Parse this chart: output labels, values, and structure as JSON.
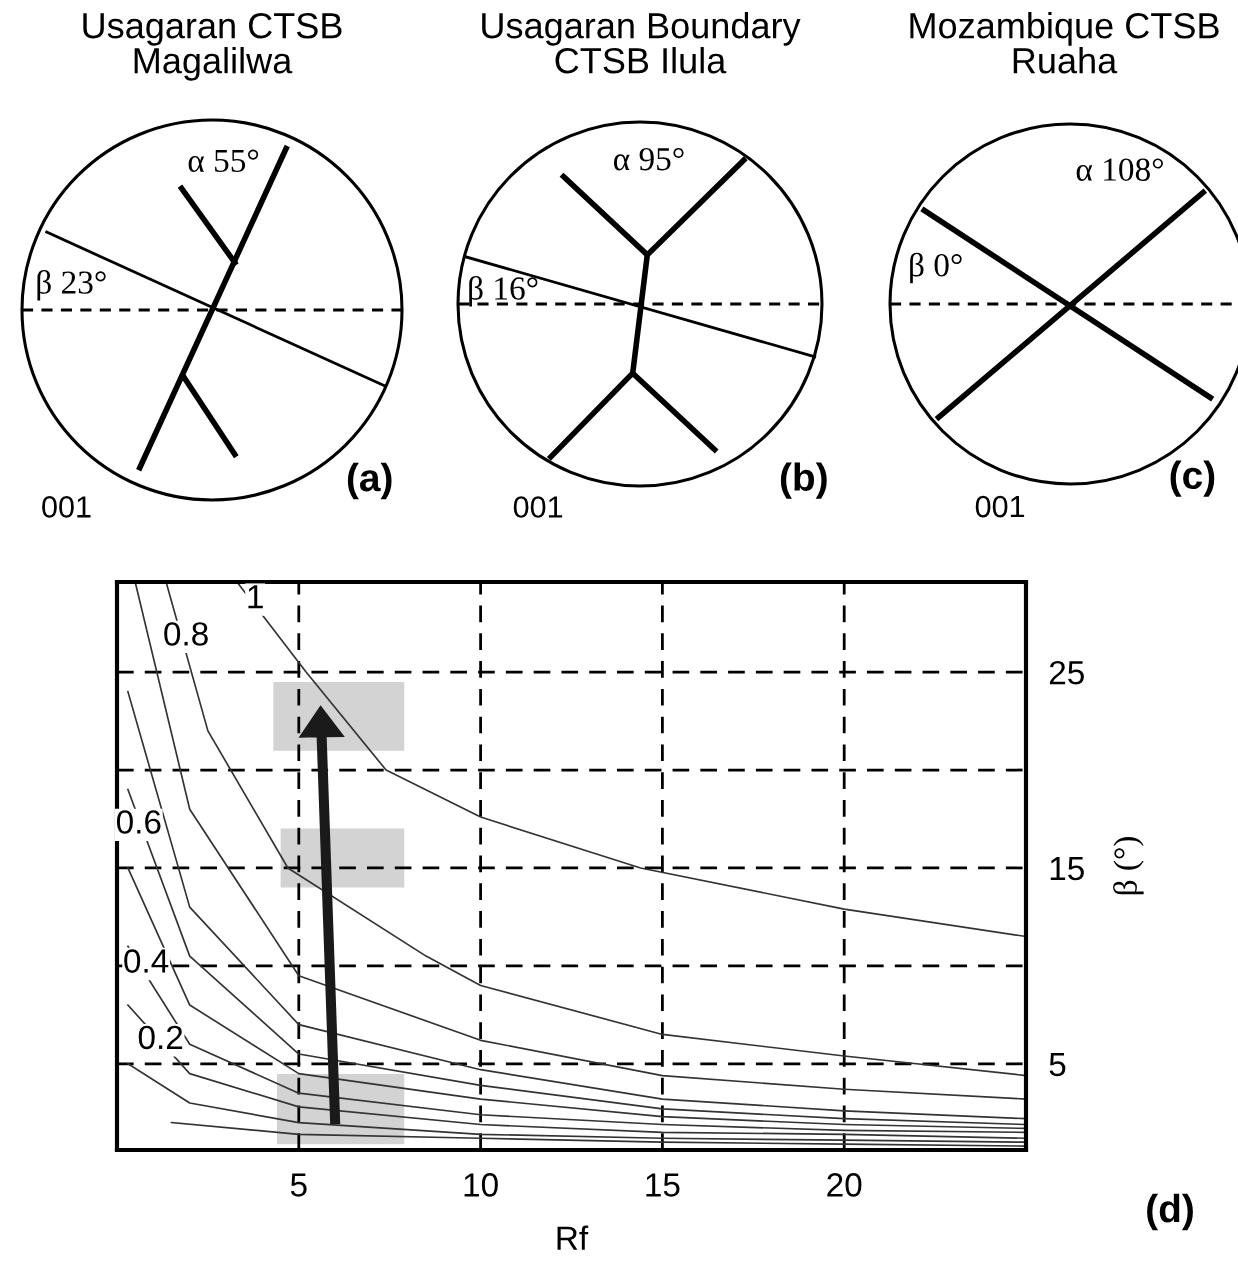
{
  "chart_data": [
    {
      "type": "other",
      "title": "Usagaran CTSB\nMagalilwa",
      "annotations": [
        "α 55°",
        "β 23°",
        "001",
        "(a)"
      ]
    },
    {
      "type": "other",
      "title": "Usagaran Boundary\nCTSB Ilula",
      "annotations": [
        "α 95°",
        "β 16°",
        "001",
        "(b)"
      ]
    },
    {
      "type": "other",
      "title": "Mozambique CTSB\nRuaha",
      "annotations": [
        "α 108°",
        "β 0°",
        "001",
        "(c)"
      ]
    },
    {
      "type": "line",
      "xlabel": "Rf",
      "ylabel": "β (°)",
      "xlim": [
        0,
        25
      ],
      "ylim": [
        0.6,
        29.6
      ],
      "xticks": [
        5,
        10,
        15,
        20
      ],
      "yticks": [
        5,
        {
          "value": 10,
          "label": null
        },
        15,
        {
          "value": 20,
          "label": null
        },
        25
      ],
      "grid": true,
      "legend": false,
      "marker": "none",
      "line_style": "solid",
      "series": [
        {
          "color": "#333333",
          "x": [
            3.3,
            5.2,
            7.4,
            10,
            14.4,
            20,
            25
          ],
          "values": [
            29.6,
            25,
            20,
            17.6,
            15,
            12.9,
            11.5
          ]
        },
        {
          "color": "#333333",
          "x": [
            1.35,
            2.5,
            4.7,
            8.5,
            10,
            15,
            20,
            25
          ],
          "values": [
            29.6,
            22,
            15,
            10.5,
            9,
            6.5,
            5.4,
            4.4
          ]
        },
        {
          "color": "#333333",
          "x": [
            0.5,
            2,
            5,
            10,
            15,
            20,
            25
          ],
          "values": [
            29.6,
            18,
            9.5,
            6.2,
            4.4,
            3.7,
            3.2
          ]
        },
        {
          "color": "#333333",
          "x": [
            0.3,
            2,
            5,
            10,
            15,
            20,
            25
          ],
          "values": [
            24,
            13,
            7,
            4.7,
            3.2,
            2.6,
            2.2
          ]
        },
        {
          "color": "#333333",
          "x": [
            0.3,
            2,
            5,
            10,
            15,
            20,
            25
          ],
          "values": [
            19,
            10.5,
            5.5,
            3.9,
            2.7,
            2.2,
            1.9
          ]
        },
        {
          "color": "#333333",
          "x": [
            0.3,
            2,
            5,
            10,
            15,
            20,
            25
          ],
          "values": [
            15,
            8,
            4.5,
            3.2,
            2.3,
            1.9,
            1.7
          ]
        },
        {
          "color": "#333333",
          "x": [
            0.3,
            2,
            5,
            10,
            15,
            20,
            25
          ],
          "values": [
            11,
            6,
            3.5,
            2.4,
            1.9,
            1.6,
            1.5
          ]
        },
        {
          "color": "#333333",
          "x": [
            0.3,
            2,
            5,
            10,
            15,
            20,
            25
          ],
          "values": [
            8,
            4.5,
            2.8,
            1.9,
            1.5,
            1.4,
            1.2
          ]
        },
        {
          "color": "#333333",
          "x": [
            0.3,
            2,
            5,
            10,
            15,
            20,
            25
          ],
          "values": [
            5,
            3,
            2,
            1.4,
            1.2,
            1.1,
            1.0
          ]
        },
        {
          "color": "#333333",
          "x": [
            1.5,
            5,
            10,
            15,
            20,
            25
          ],
          "values": [
            2,
            1.4,
            1.2,
            1.0,
            0.9,
            0.8
          ]
        }
      ],
      "annotations": [
        {
          "text": "1",
          "x": 3.8,
          "y": 28.7
        },
        {
          "text": "0.8",
          "x": 1.9,
          "y": 26.8
        },
        {
          "text": "0.6",
          "x": 0.6,
          "y": 17.2
        },
        {
          "text": "0.4",
          "x": 0.8,
          "y": 10.1
        },
        {
          "text": "0.2",
          "x": 1.2,
          "y": 6.2
        },
        "(d)"
      ]
    }
  ]
}
